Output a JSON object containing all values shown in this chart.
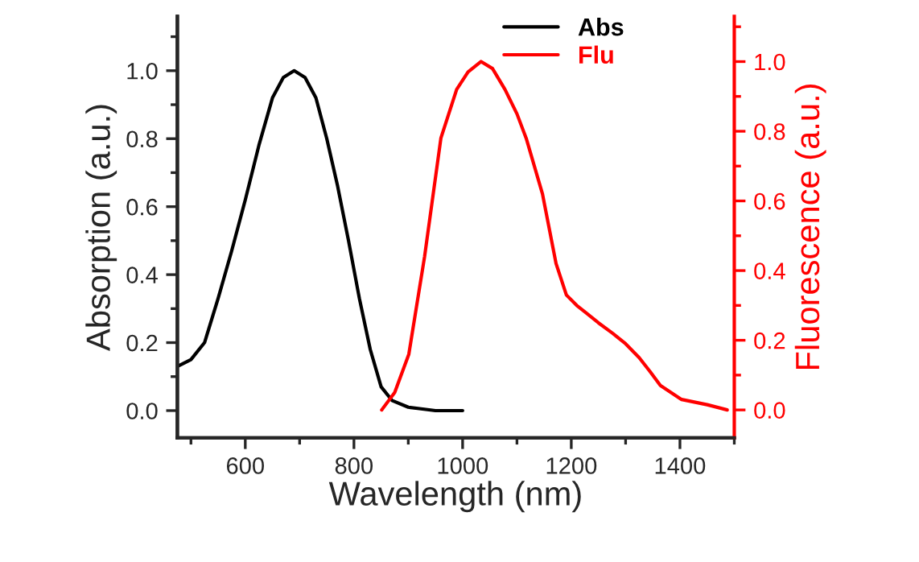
{
  "chart_data": {
    "type": "line",
    "xlabel": "Wavelength (nm)",
    "ylabel": "Absorption (a.u.)",
    "y2label": "Fluorescence (a.u.)",
    "xlim": [
      475,
      1500
    ],
    "xticks": [
      600,
      800,
      1000,
      1200,
      1400
    ],
    "ylim": [
      -0.08,
      1.16
    ],
    "yticks": [
      {
        "value": 0,
        "label": "0.0"
      },
      {
        "value": 0.2,
        "label": "0.2"
      },
      {
        "value": 0.4,
        "label": "0.4"
      },
      {
        "value": 0.6,
        "label": "0.6"
      },
      {
        "value": 0.8,
        "label": "0.8"
      },
      {
        "value": 1,
        "label": "1.0"
      }
    ],
    "y2lim": [
      -0.08,
      1.13
    ],
    "y2ticks": [
      {
        "value": 0,
        "label": "0.0"
      },
      {
        "value": 0.2,
        "label": "0.2"
      },
      {
        "value": 0.4,
        "label": "0.4"
      },
      {
        "value": 0.6,
        "label": "0.6"
      },
      {
        "value": 0.8,
        "label": "0.8"
      },
      {
        "value": 1,
        "label": "1.0"
      }
    ],
    "legend": "top right",
    "grid": false,
    "marker": "none",
    "line_style": "solid",
    "series": [
      {
        "name": "Abs",
        "color": "#000000",
        "x": [
          475,
          500,
          525,
          550,
          575,
          600,
          625,
          650,
          670,
          690,
          710,
          730,
          750,
          770,
          790,
          810,
          830,
          850,
          870,
          900,
          950,
          1000
        ],
        "values": [
          0.13,
          0.15,
          0.2,
          0.33,
          0.47,
          0.62,
          0.78,
          0.92,
          0.98,
          1.0,
          0.98,
          0.92,
          0.8,
          0.66,
          0.5,
          0.33,
          0.18,
          0.07,
          0.03,
          0.01,
          0.0,
          0.0
        ]
      },
      {
        "name": "Flu",
        "color": "#ff0000",
        "axis": "y2",
        "x": [
          851,
          875,
          901,
          930,
          960,
          989,
          1010,
          1034,
          1055,
          1078,
          1100,
          1117,
          1147,
          1172,
          1191,
          1210,
          1226,
          1250,
          1276,
          1300,
          1325,
          1345,
          1364,
          1403,
          1450,
          1487
        ],
        "values": [
          0.0,
          0.05,
          0.16,
          0.44,
          0.78,
          0.92,
          0.97,
          1.0,
          0.98,
          0.92,
          0.85,
          0.78,
          0.62,
          0.42,
          0.33,
          0.3,
          0.28,
          0.25,
          0.22,
          0.19,
          0.15,
          0.11,
          0.07,
          0.03,
          0.015,
          0.0
        ]
      }
    ]
  }
}
